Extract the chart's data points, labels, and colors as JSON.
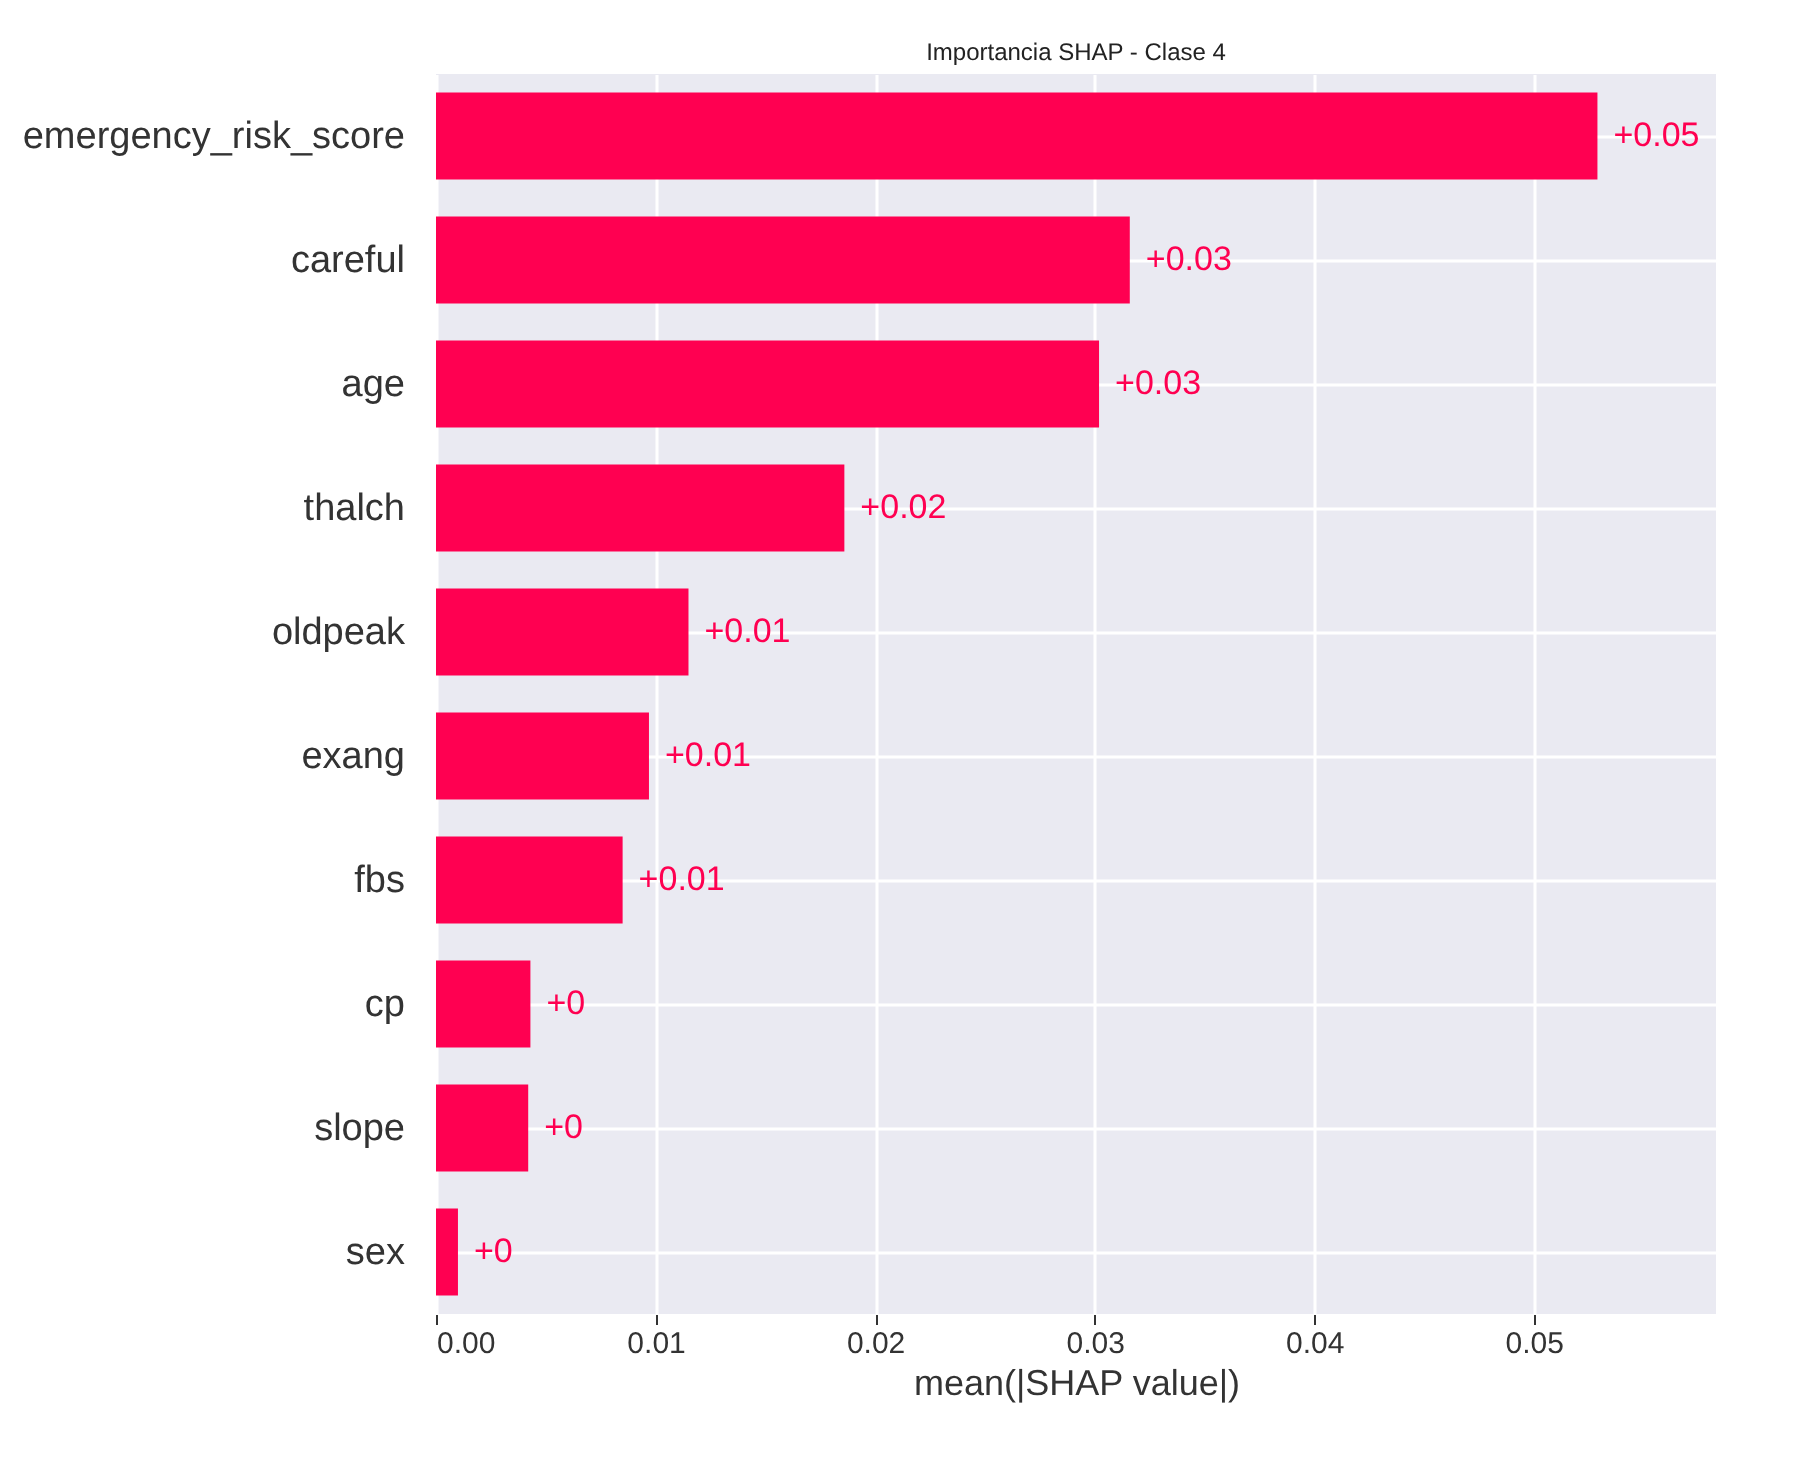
{
  "chart_data": {
    "type": "bar",
    "orientation": "horizontal",
    "title": "Importancia SHAP - Clase 4",
    "xlabel": "mean(|SHAP value|)",
    "categories": [
      "emergency_risk_score",
      "careful",
      "age",
      "thalch",
      "oldpeak",
      "exang",
      "fbs",
      "cp",
      "slope",
      "sex"
    ],
    "values": [
      0.0529,
      0.0316,
      0.0302,
      0.0186,
      0.0115,
      0.0097,
      0.0085,
      0.0043,
      0.0042,
      0.001
    ],
    "value_labels": [
      "+0.05",
      "+0.03",
      "+0.03",
      "+0.02",
      "+0.01",
      "+0.01",
      "+0.01",
      "+0",
      "+0",
      "+0"
    ],
    "color": "#ff0051",
    "xlim": [
      0,
      0.0583
    ],
    "xticks": [
      {
        "value": 0,
        "label": "0.00"
      },
      {
        "value": 0.01,
        "label": "0.01"
      },
      {
        "value": 0.02,
        "label": "0.02"
      },
      {
        "value": 0.03,
        "label": "0.03"
      },
      {
        "value": 0.04,
        "label": "0.04"
      },
      {
        "value": 0.05,
        "label": "0.05"
      }
    ],
    "grid": true
  }
}
